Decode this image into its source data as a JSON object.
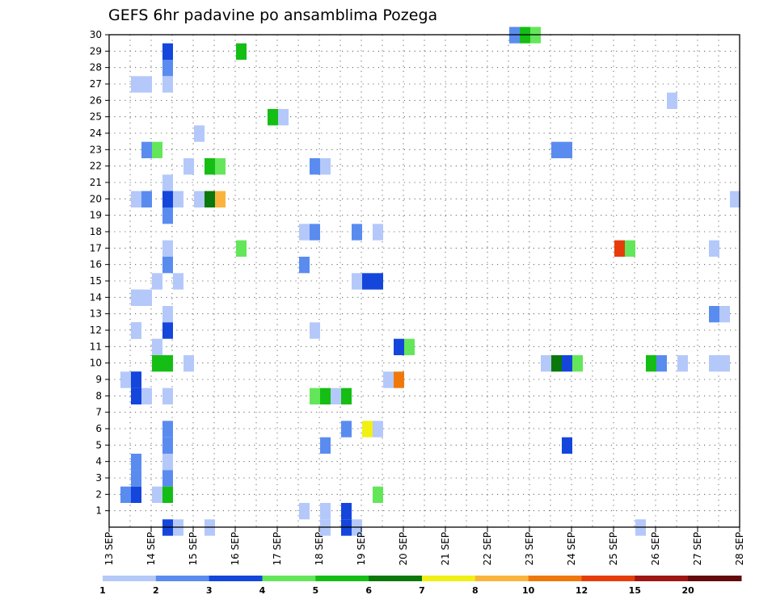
{
  "chart_data": {
    "type": "heatmap",
    "title": "GEFS 6hr padavine po ansamblima Pozega",
    "xlabel": "",
    "ylabel": "",
    "x_ticks": [
      "13 SEP",
      "14 SEP",
      "15 SEP",
      "16 SEP",
      "17 SEP",
      "18 SEP",
      "19 SEP",
      "20 SEP",
      "21 SEP",
      "22 SEP",
      "23 SEP",
      "24 SEP",
      "25 SEP",
      "26 SEP",
      "27 SEP",
      "28 SEP"
    ],
    "y_ticks": [
      1,
      2,
      3,
      4,
      5,
      6,
      7,
      8,
      9,
      10,
      11,
      12,
      13,
      14,
      15,
      16,
      17,
      18,
      19,
      20,
      21,
      22,
      23,
      24,
      25,
      26,
      27,
      28,
      29,
      30
    ],
    "xlim": [
      0,
      60
    ],
    "ylim": [
      0,
      30
    ],
    "grid": true,
    "colorbar": {
      "labels": [
        "1",
        "2",
        "3",
        "4",
        "5",
        "6",
        "7",
        "8",
        "10",
        "12",
        "15",
        "20"
      ],
      "colors": [
        "#b4c8fa",
        "#5a8cf0",
        "#1446dc",
        "#64e65a",
        "#14be14",
        "#0a780a",
        "#f0f014",
        "#fab43c",
        "#f0780a",
        "#e63c0a",
        "#a01414",
        "#640a0a"
      ]
    },
    "cells": [
      {
        "step": 38,
        "member": 30,
        "level": 1
      },
      {
        "step": 39,
        "member": 30,
        "level": 4
      },
      {
        "step": 40,
        "member": 30,
        "level": 3
      },
      {
        "step": 12,
        "member": 29,
        "level": 4
      },
      {
        "step": 2,
        "member": 27,
        "level": 0
      },
      {
        "step": 3,
        "member": 27,
        "level": 0
      },
      {
        "step": 53,
        "member": 26,
        "level": 0
      },
      {
        "step": 15,
        "member": 25,
        "level": 4
      },
      {
        "step": 16,
        "member": 25,
        "level": 0
      },
      {
        "step": 8,
        "member": 24,
        "level": 0
      },
      {
        "step": 3,
        "member": 23,
        "level": 1
      },
      {
        "step": 4,
        "member": 23,
        "level": 3
      },
      {
        "step": 42,
        "member": 23,
        "level": 1
      },
      {
        "step": 43,
        "member": 23,
        "level": 1
      },
      {
        "step": 7,
        "member": 22,
        "level": 0
      },
      {
        "step": 9,
        "member": 22,
        "level": 4
      },
      {
        "step": 10,
        "member": 22,
        "level": 3
      },
      {
        "step": 19,
        "member": 22,
        "level": 1
      },
      {
        "step": 20,
        "member": 22,
        "level": 0
      },
      {
        "step": 2,
        "member": 20,
        "level": 0
      },
      {
        "step": 3,
        "member": 20,
        "level": 1
      },
      {
        "step": 5,
        "member": 20,
        "level": 2
      },
      {
        "step": 6,
        "member": 20,
        "level": 0
      },
      {
        "step": 8,
        "member": 20,
        "level": 0
      },
      {
        "step": 9,
        "member": 20,
        "level": 5
      },
      {
        "step": 10,
        "member": 20,
        "level": 7
      },
      {
        "step": 59,
        "member": 20,
        "level": 0
      },
      {
        "step": 18,
        "member": 18,
        "level": 0
      },
      {
        "step": 19,
        "member": 18,
        "level": 1
      },
      {
        "step": 23,
        "member": 18,
        "level": 1
      },
      {
        "step": 25,
        "member": 18,
        "level": 0
      },
      {
        "step": 12,
        "member": 17,
        "level": 3
      },
      {
        "step": 48,
        "member": 17,
        "level": 9
      },
      {
        "step": 49,
        "member": 17,
        "level": 3
      },
      {
        "step": 57,
        "member": 17,
        "level": 0
      },
      {
        "step": 18,
        "member": 16,
        "level": 1
      },
      {
        "step": 4,
        "member": 15,
        "level": 0
      },
      {
        "step": 6,
        "member": 15,
        "level": 0
      },
      {
        "step": 23,
        "member": 15,
        "level": 0
      },
      {
        "step": 24,
        "member": 15,
        "level": 2
      },
      {
        "step": 25,
        "member": 15,
        "level": 2
      },
      {
        "step": 2,
        "member": 14,
        "level": 0
      },
      {
        "step": 3,
        "member": 14,
        "level": 0
      },
      {
        "step": 57,
        "member": 13,
        "level": 1
      },
      {
        "step": 58,
        "member": 13,
        "level": 0
      },
      {
        "step": 2,
        "member": 12,
        "level": 1
      },
      {
        "step": 19,
        "member": 12,
        "level": 0
      },
      {
        "step": 4,
        "member": 11,
        "level": 0
      },
      {
        "step": 27,
        "member": 11,
        "level": 2
      },
      {
        "step": 28,
        "member": 11,
        "level": 3
      },
      {
        "step": 4,
        "member": 10,
        "level": 4
      },
      {
        "step": 5,
        "member": 10,
        "level": 4
      },
      {
        "step": 7,
        "member": 10,
        "level": 0
      },
      {
        "step": 41,
        "member": 10,
        "level": 0
      },
      {
        "step": 42,
        "member": 10,
        "level": 5
      },
      {
        "step": 43,
        "member": 10,
        "level": 2
      },
      {
        "step": 44,
        "member": 10,
        "level": 3
      },
      {
        "step": 51,
        "member": 10,
        "level": 4
      },
      {
        "step": 52,
        "member": 10,
        "level": 1
      },
      {
        "step": 54,
        "member": 10,
        "level": 0
      },
      {
        "step": 57,
        "member": 10,
        "level": 0
      },
      {
        "step": 58,
        "member": 10,
        "level": 0
      },
      {
        "step": 1,
        "member": 9,
        "level": 0
      },
      {
        "step": 2,
        "member": 9,
        "level": 2
      },
      {
        "step": 26,
        "member": 9,
        "level": 0
      },
      {
        "step": 27,
        "member": 9,
        "level": 8
      },
      {
        "step": 2,
        "member": 8,
        "level": 2
      },
      {
        "step": 3,
        "member": 8,
        "level": 0
      },
      {
        "step": 5,
        "member": 8,
        "level": 0
      },
      {
        "step": 19,
        "member": 8,
        "level": 3
      },
      {
        "step": 20,
        "member": 8,
        "level": 4
      },
      {
        "step": 21,
        "member": 8,
        "level": 0
      },
      {
        "step": 22,
        "member": 8,
        "level": 4
      },
      {
        "step": 22,
        "member": 6,
        "level": 1
      },
      {
        "step": 24,
        "member": 6,
        "level": 6
      },
      {
        "step": 25,
        "member": 6,
        "level": 0
      },
      {
        "step": 20,
        "member": 5,
        "level": 1
      },
      {
        "step": 43,
        "member": 5,
        "level": 2
      },
      {
        "step": 2,
        "member": 4,
        "level": 1
      },
      {
        "step": 1,
        "member": 2,
        "level": 1
      },
      {
        "step": 2,
        "member": 2,
        "level": 2
      },
      {
        "step": 4,
        "member": 2,
        "level": 0
      },
      {
        "step": 5,
        "member": 2,
        "level": 4
      },
      {
        "step": 25,
        "member": 2,
        "level": 3
      },
      {
        "step": 18,
        "member": 1,
        "level": 0
      },
      {
        "step": 20,
        "member": 1,
        "level": 0
      },
      {
        "step": 22,
        "member": 1,
        "level": 2
      },
      {
        "step": 5,
        "member": 0,
        "level": 2
      },
      {
        "step": 6,
        "member": 0,
        "level": 0
      },
      {
        "step": 9,
        "member": 0,
        "level": 0
      },
      {
        "step": 20,
        "member": 0,
        "level": 0
      },
      {
        "step": 22,
        "member": 0,
        "level": 2
      },
      {
        "step": 23,
        "member": 0,
        "level": 0
      },
      {
        "step": 50,
        "member": 0,
        "level": 0
      }
    ],
    "column_runs": [
      {
        "step": 5,
        "level": 2,
        "from": 28,
        "to": 29
      },
      {
        "step": 5,
        "level": 1,
        "from": 27,
        "to": 28
      },
      {
        "step": 5,
        "level": 0,
        "from": 26,
        "to": 27
      },
      {
        "step": 5,
        "level": 0,
        "from": 20,
        "to": 21
      },
      {
        "step": 5,
        "level": 2,
        "from": 19,
        "to": 20
      },
      {
        "step": 5,
        "level": 1,
        "from": 18,
        "to": 19
      },
      {
        "step": 5,
        "level": 0,
        "from": 16,
        "to": 17
      },
      {
        "step": 5,
        "level": 1,
        "from": 15,
        "to": 16
      },
      {
        "step": 5,
        "level": 0,
        "from": 12,
        "to": 13
      },
      {
        "step": 5,
        "level": 2,
        "from": 11,
        "to": 12
      },
      {
        "step": 5,
        "level": 1,
        "from": 5,
        "to": 6
      },
      {
        "step": 5,
        "level": 1,
        "from": 4,
        "to": 5
      },
      {
        "step": 5,
        "level": 0,
        "from": 3,
        "to": 4
      },
      {
        "step": 5,
        "level": 1,
        "from": 2,
        "to": 3
      },
      {
        "step": 2,
        "level": 0,
        "from": 13,
        "to": 14
      },
      {
        "step": 2,
        "level": 0,
        "from": 11,
        "to": 12
      },
      {
        "step": 2,
        "level": 2,
        "from": 8,
        "to": 9
      },
      {
        "step": 2,
        "level": 1,
        "from": 3,
        "to": 4
      },
      {
        "step": 2,
        "level": 1,
        "from": 2,
        "to": 3
      }
    ]
  }
}
